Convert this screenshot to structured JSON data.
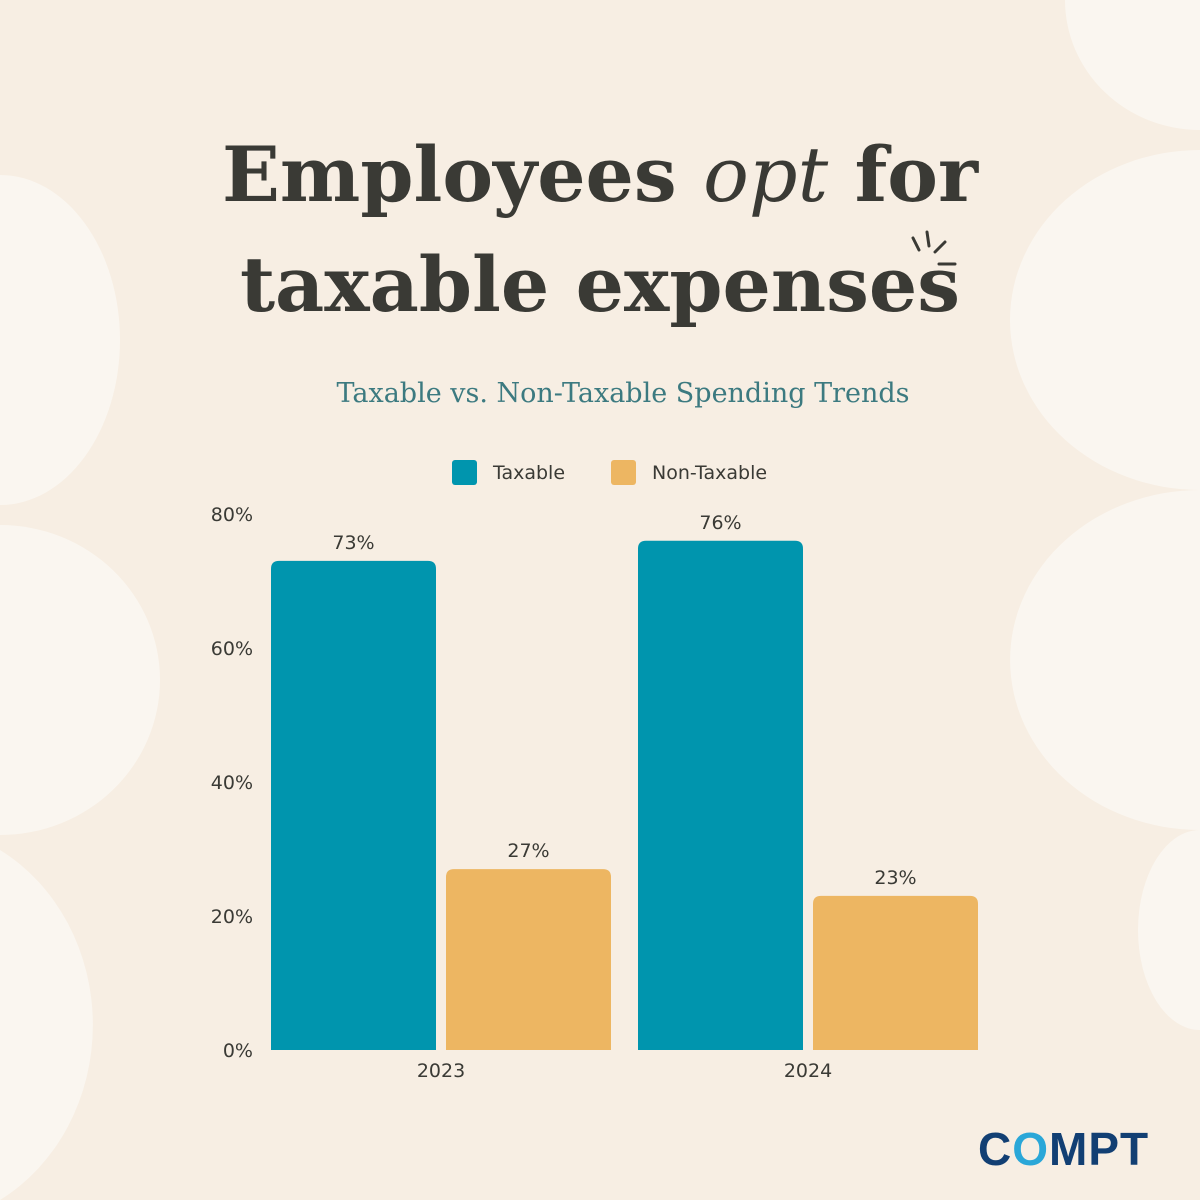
{
  "header": {
    "title_line1_a": "Employees",
    "title_line1_b": "opt",
    "title_line1_c": "for",
    "title_line2": "taxable expenses"
  },
  "logo": {
    "text_c": "C",
    "text_o": "O",
    "text_rest": "MPT"
  },
  "colors": {
    "taxable": "#0095ae",
    "non_taxable": "#edb662",
    "background": "#f7eee3",
    "text": "#3a3a35",
    "subtitle": "#3c7a80"
  },
  "chart_data": {
    "type": "bar",
    "title": "Taxable vs. Non-Taxable Spending Trends",
    "categories": [
      "2023",
      "2024"
    ],
    "series": [
      {
        "name": "Taxable",
        "values": [
          73,
          76
        ],
        "labels": [
          "73%",
          "76%"
        ]
      },
      {
        "name": "Non-Taxable",
        "values": [
          27,
          23
        ],
        "labels": [
          "27%",
          "23%"
        ]
      }
    ],
    "ylim": [
      0,
      80
    ],
    "yticks": [
      "0%",
      "20%",
      "40%",
      "60%",
      "80%"
    ],
    "grid": false,
    "legend": "top"
  }
}
